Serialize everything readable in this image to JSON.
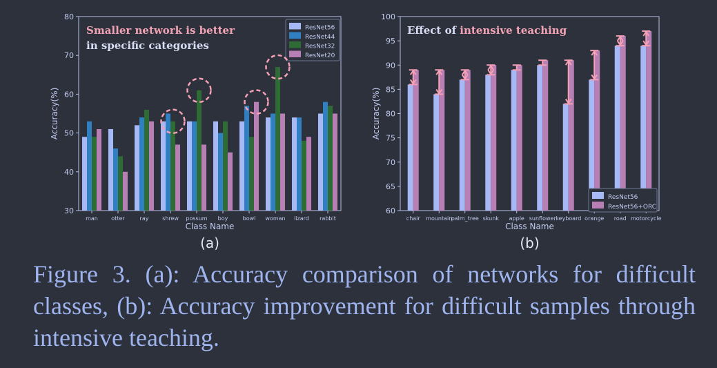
{
  "chart_data": [
    {
      "type": "bar",
      "panel_label": "(a)",
      "xlabel": "Class Name",
      "ylabel": "Accuracy(%)",
      "ylim": [
        30,
        80
      ],
      "yticks": [
        30,
        40,
        50,
        60,
        70,
        80
      ],
      "categories": [
        "man",
        "otter",
        "ray",
        "shrew",
        "possum",
        "boy",
        "bowl",
        "woman",
        "lizard",
        "rabbit"
      ],
      "series": [
        {
          "name": "ResNet56",
          "color": "#a6b8f5",
          "values": [
            49,
            51,
            52,
            53,
            53,
            53,
            53,
            54,
            54,
            55
          ]
        },
        {
          "name": "ResNet44",
          "color": "#2f7fc1",
          "values": [
            53,
            46,
            54,
            55,
            53,
            50,
            57,
            55,
            54,
            58
          ]
        },
        {
          "name": "ResNet32",
          "color": "#2e6b35",
          "values": [
            49,
            44,
            56,
            53,
            61,
            53,
            49,
            67,
            48,
            57
          ]
        },
        {
          "name": "ResNet20",
          "color": "#b77fb4",
          "values": [
            51,
            40,
            53,
            47,
            47,
            45,
            58,
            55,
            49,
            55
          ]
        }
      ],
      "annotation_line1": "Smaller network is better",
      "annotation_line2": "in specific categories",
      "annotation_colors": [
        "#f2a3b3",
        "#d8dcf4"
      ],
      "highlight_color": "#f5a0b5",
      "highlights": [
        {
          "category": "shrew",
          "series": "ResNet32"
        },
        {
          "category": "possum",
          "series": "ResNet32"
        },
        {
          "category": "bowl",
          "series": "ResNet20"
        },
        {
          "category": "woman",
          "series": "ResNet32"
        }
      ],
      "legend_position": "top-right",
      "grid": false
    },
    {
      "type": "bar",
      "panel_label": "(b)",
      "xlabel": "Class Name",
      "ylabel": "Accuracy(%)",
      "ylim": [
        60,
        100
      ],
      "yticks": [
        60,
        65,
        70,
        75,
        80,
        85,
        90,
        95,
        100
      ],
      "categories": [
        "chair",
        "mountain",
        "palm_tree",
        "skunk",
        "apple",
        "sunflower",
        "keyboard",
        "orange",
        "road",
        "motorcycle"
      ],
      "series": [
        {
          "name": "ResNet56",
          "color": "#a6b8f5",
          "values": [
            86,
            84,
            87,
            88,
            89,
            90,
            82,
            87,
            94,
            94
          ]
        },
        {
          "name": "ResNet56+ORC",
          "color": "#b77fb4",
          "values": [
            89,
            89,
            89,
            90,
            90,
            91,
            91,
            93,
            96,
            97
          ]
        }
      ],
      "title_part1": "Effect of ",
      "title_part2": "intensive teaching",
      "title_colors": [
        "#d8dcf4",
        "#f2a3b3"
      ],
      "arrow_color": "#f5a0b5",
      "legend_position": "bottom-right",
      "grid": false
    }
  ],
  "caption": "Figure 3. (a): Accuracy comparison of networks for difficult classes, (b): Accuracy improvement for difficult samples through intensive teaching."
}
